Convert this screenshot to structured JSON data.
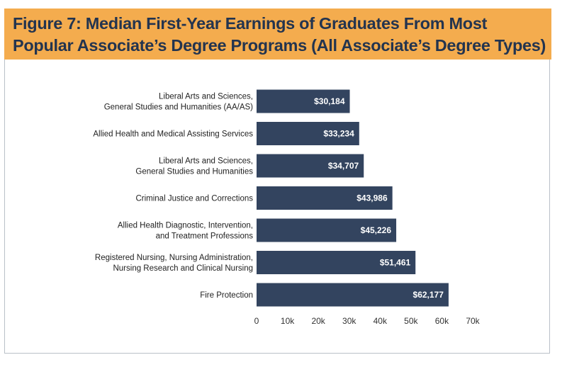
{
  "chart_data": {
    "type": "bar",
    "orientation": "horizontal",
    "title_lines": [
      "Figure 7: Median First-Year Earnings of Graduates From Most",
      "Popular Associate’s Degree Programs (All Associate’s Degree Types)"
    ],
    "categories": [
      [
        "Liberal Arts and Sciences,",
        "General Studies and Humanities (AA/AS)"
      ],
      [
        "Allied Health and Medical Assisting Services"
      ],
      [
        "Liberal Arts and Sciences,",
        "General Studies and Humanities"
      ],
      [
        "Criminal Justice and Corrections"
      ],
      [
        "Allied Health Diagnostic, Intervention,",
        "and Treatment Professions"
      ],
      [
        "Registered Nursing, Nursing Administration,",
        "Nursing Research and Clinical Nursing"
      ],
      [
        "Fire Protection"
      ]
    ],
    "values": [
      30184,
      33234,
      34707,
      43986,
      45226,
      51461,
      62177
    ],
    "value_labels": [
      "$30,184",
      "$33,234",
      "$34,707",
      "$43,986",
      "$45,226",
      "$51,461",
      "$62,177"
    ],
    "xlim": [
      0,
      70000
    ],
    "xticks": [
      0,
      10000,
      20000,
      30000,
      40000,
      50000,
      60000,
      70000
    ],
    "xtick_labels": [
      "0",
      "10k",
      "20k",
      "30k",
      "40k",
      "50k",
      "60k",
      "70k"
    ],
    "xlabel": "",
    "ylabel": "",
    "grid": false,
    "colors": {
      "bar": "#33445f",
      "header": "#f4ac4e",
      "title": "#23344f"
    }
  }
}
